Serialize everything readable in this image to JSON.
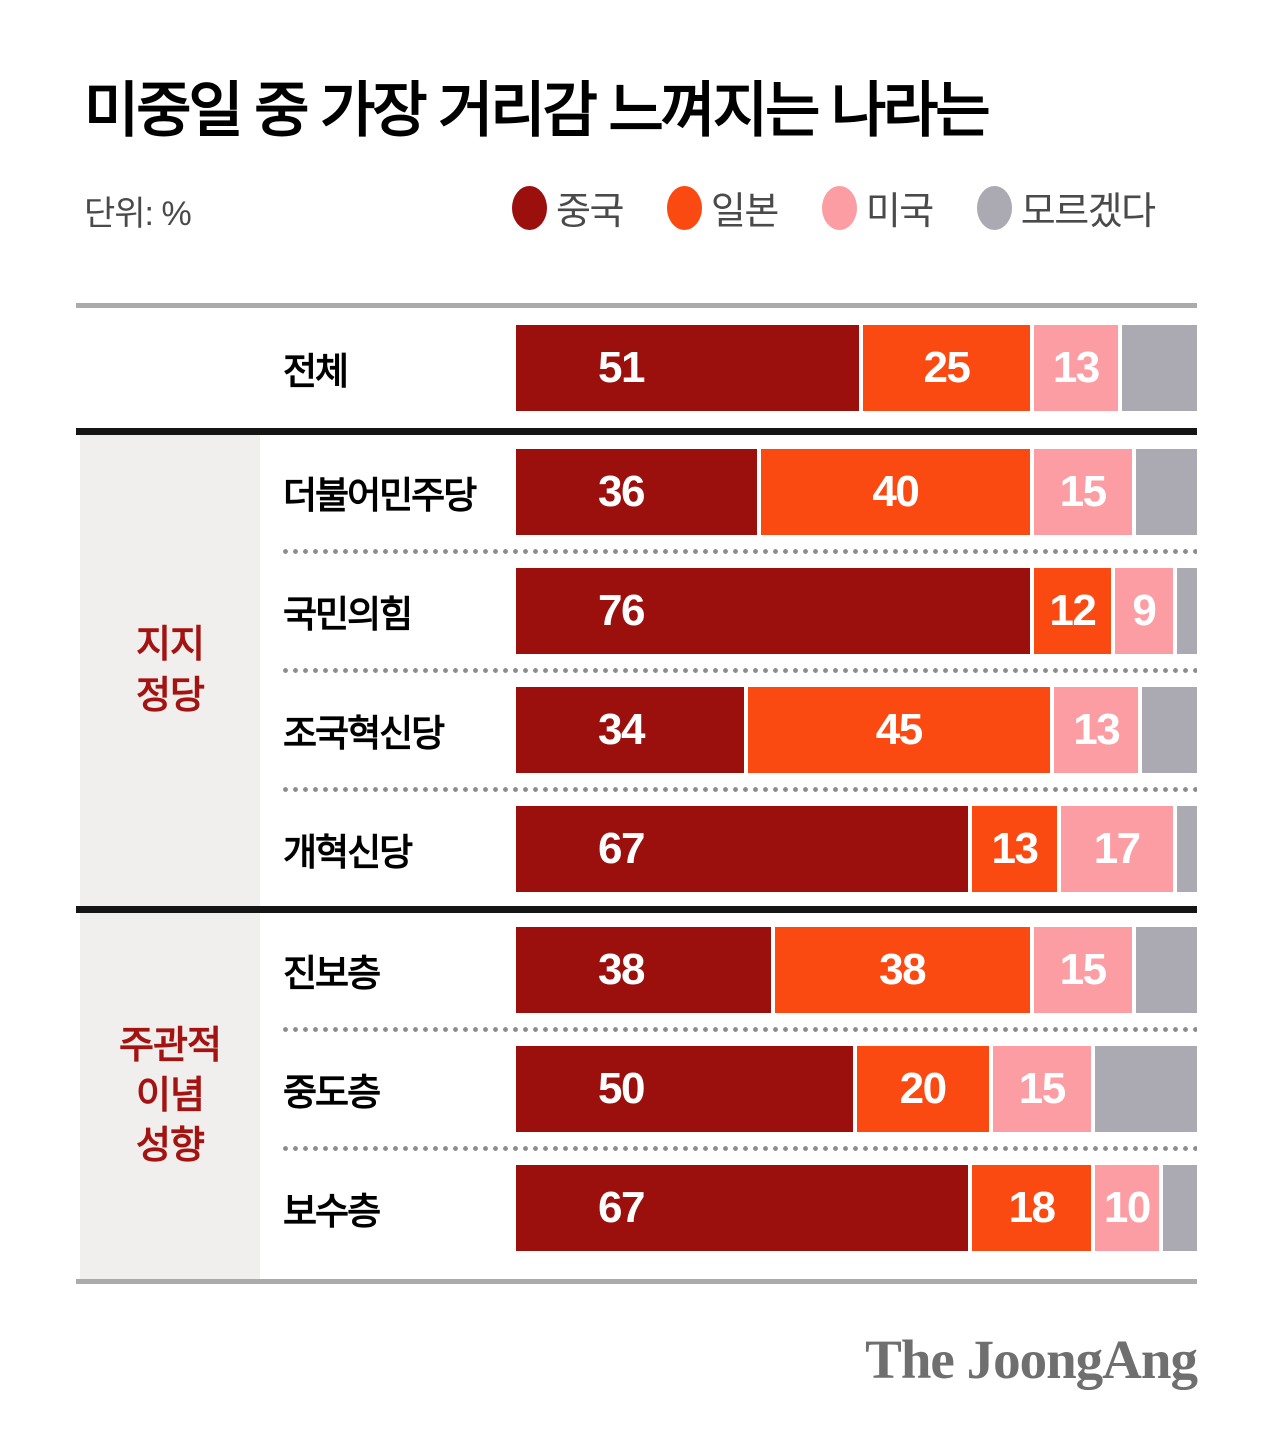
{
  "title": "미중일 중 가장 거리감 느껴지는 나라는",
  "unit_label": "단위: %",
  "legend": [
    {
      "label": "중국",
      "color": "#9B0F0D"
    },
    {
      "label": "일본",
      "color": "#FA4A12"
    },
    {
      "label": "미국",
      "color": "#FB9DA2"
    },
    {
      "label": "모르겠다",
      "color": "#ABAAB3"
    }
  ],
  "chart_data": {
    "type": "bar",
    "stacked": true,
    "orientation": "horizontal",
    "unit": "%",
    "xlim": [
      0,
      100
    ],
    "title": "미중일 중 가장 거리감 느껴지는 나라는",
    "series": [
      {
        "name": "중국",
        "color": "#9B0F0D",
        "value_label_visible": true
      },
      {
        "name": "일본",
        "color": "#FA4A12",
        "value_label_visible": true
      },
      {
        "name": "미국",
        "color": "#FB9DA2",
        "value_label_visible": true
      },
      {
        "name": "모르겠다",
        "color": "#ABAAB3",
        "value_label_visible": false
      }
    ],
    "groups": [
      {
        "section": "",
        "section_lines": [],
        "rows": [
          {
            "label": "전체",
            "values": [
              51,
              25,
              13,
              11
            ]
          }
        ]
      },
      {
        "section": "지지 정당",
        "section_lines": [
          "지지",
          "정당"
        ],
        "rows": [
          {
            "label": "더불어민주당",
            "values": [
              36,
              40,
              15,
              9
            ]
          },
          {
            "label": "국민의힘",
            "values": [
              76,
              12,
              9,
              3
            ]
          },
          {
            "label": "조국혁신당",
            "values": [
              34,
              45,
              13,
              8
            ]
          },
          {
            "label": "개혁신당",
            "values": [
              67,
              13,
              17,
              3
            ]
          }
        ]
      },
      {
        "section": "주관적 이념 성향",
        "section_lines": [
          "주관적",
          "이념",
          "성향"
        ],
        "rows": [
          {
            "label": "진보층",
            "values": [
              38,
              38,
              15,
              9
            ]
          },
          {
            "label": "중도층",
            "values": [
              50,
              20,
              15,
              15
            ]
          },
          {
            "label": "보수층",
            "values": [
              67,
              18,
              10,
              5
            ]
          }
        ]
      }
    ],
    "colors": {
      "section_label": "#A31311",
      "section_background": "#F0EFED",
      "divider_black": "#151515",
      "divider_gray": "#ABABAB"
    }
  },
  "footer": {
    "logo": "The JoongAng"
  }
}
